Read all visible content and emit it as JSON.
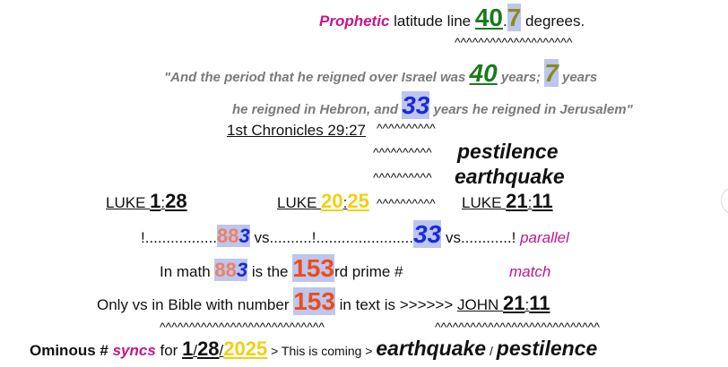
{
  "lines": [
    [
      "Prophetic",
      " latitude line ",
      "40",
      ".",
      "7",
      " degrees."
    ],
    [
      "^^^^^^^^^^^^^^^^^^^^"
    ],
    [
      "\"",
      "And the period that he reigned over Israel was ",
      "40",
      " years; ",
      "7",
      " years"
    ],
    [
      "he reigned in Hebron, and ",
      "33",
      " years he reigned in Jerusalem",
      "\""
    ],
    [
      "1st Chronicles 29:27",
      "^^^^^^^^^^"
    ],
    [
      "^^^^^^^^^^",
      "pestilence"
    ],
    [
      "^^^^^^^^^^",
      "earthquake"
    ],
    [
      "LUKE ",
      "1",
      ":",
      "28",
      "LUKE ",
      "20",
      ":",
      "25",
      "^^^^^^^^^^",
      "LUKE ",
      "21",
      ":",
      "11"
    ],
    [
      "!.................",
      "88",
      "3",
      " vs..........!.......................",
      "33",
      " vs............!",
      " parallel"
    ],
    [
      "In math ",
      "88",
      "3",
      " is the ",
      "153",
      "rd prime #",
      "match"
    ],
    [
      "Only vs in Bible with number ",
      "153",
      " in text is >>>>>> ",
      "JOHN ",
      "21",
      ":",
      "11"
    ],
    [
      "^^^^^^^^^^^^^^^^^^^^^^^^^^^^",
      "^^^^^^^^^^^^^^^^^^^^^^^^^^^^"
    ],
    [
      "Ominous # ",
      "syncs",
      " for ",
      "1",
      "/",
      "28",
      "/",
      "2025",
      " > This is coming > ",
      "earthquake",
      " / ",
      "pestilence"
    ]
  ]
}
